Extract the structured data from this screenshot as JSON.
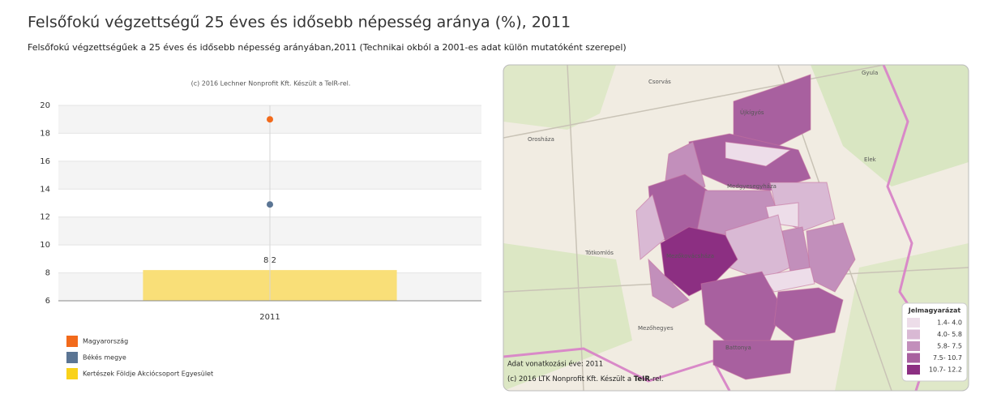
{
  "header": {
    "title": "Felsőfokú végzettségű 25 éves és idősebb népesség aránya (%), 2011",
    "subtitle": "Felsőfokú végzettségűek a 25 éves és idősebb népesség arányában,2011 (Technikai okból a 2001-es adat külön mutatóként szerepel)"
  },
  "chart_data": {
    "type": "bar",
    "subtitle": "(c) 2016 Lechner Nonprofit Kft. Készült a TeIR-rel.",
    "categories": [
      "2011"
    ],
    "series": [
      {
        "name": "Magyarország",
        "color": "#f26a1b",
        "type": "scatter",
        "values": [
          19.0
        ]
      },
      {
        "name": "Békés megye",
        "color": "#5b7594",
        "type": "scatter",
        "values": [
          12.9
        ]
      },
      {
        "name": "Kertészek Földje Akciócsoport Egyesület",
        "color": "#f9df78",
        "legend_color": "#f9d21a",
        "type": "bar",
        "values": [
          8.2
        ]
      }
    ],
    "ylim": [
      6,
      20
    ],
    "yticks": [
      6,
      8,
      10,
      12,
      14,
      16,
      18,
      20
    ],
    "grid": true,
    "legend": "bottom-left"
  },
  "map": {
    "places": [
      "Csorvás",
      "Gyula",
      "Újkígyós",
      "Orosháza",
      "Medgyesegyháza",
      "Elek",
      "Tótkomlós",
      "Mezőkovácsháza",
      "Mezőhegyes",
      "Battonya"
    ],
    "legend": {
      "title": "Jelmagyarázat",
      "items": [
        {
          "label": "1.4- 4.0",
          "color": "#eddde9"
        },
        {
          "label": "4.0- 5.8",
          "color": "#d9b9d4"
        },
        {
          "label": "5.8- 7.5",
          "color": "#c28fbb"
        },
        {
          "label": "7.5- 10.7",
          "color": "#a8609f"
        },
        {
          "label": "10.7- 12.2",
          "color": "#8c2f82"
        }
      ]
    },
    "year_note": "Adat vonatkozási éve: 2011",
    "copyright": {
      "prefix": "(c) 2016 LTK Nonprofit Kft. Készült a ",
      "brand": "TeIR",
      "suffix": "-rel."
    }
  }
}
